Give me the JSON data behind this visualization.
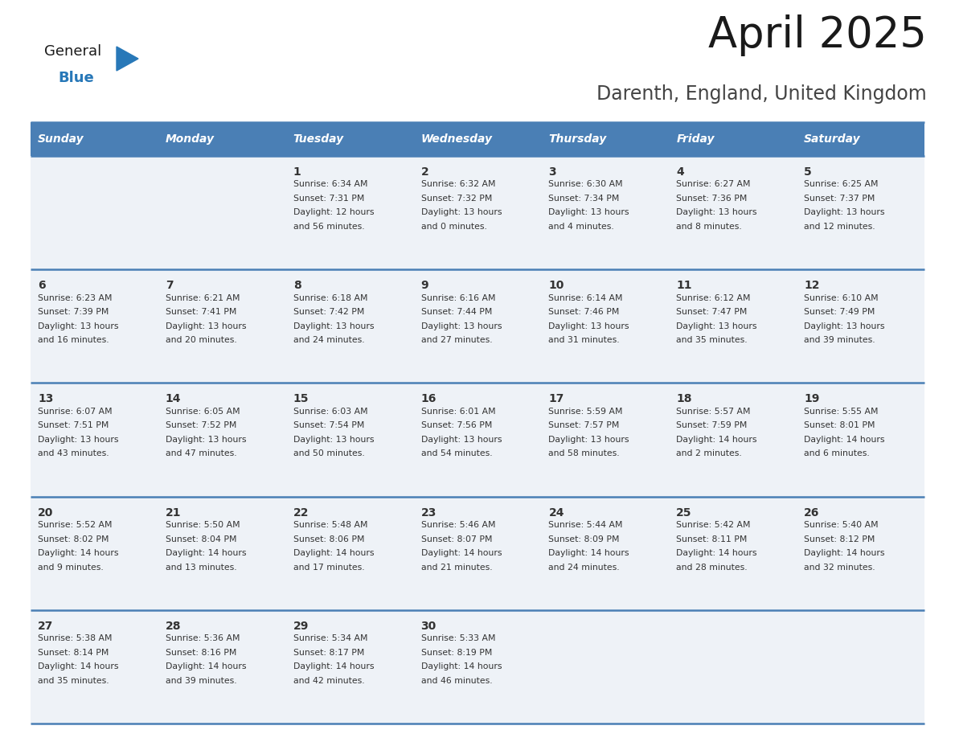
{
  "title": "April 2025",
  "subtitle": "Darenth, England, United Kingdom",
  "days_of_week": [
    "Sunday",
    "Monday",
    "Tuesday",
    "Wednesday",
    "Thursday",
    "Friday",
    "Saturday"
  ],
  "header_bg": "#4a7fb5",
  "header_text_color": "#ffffff",
  "cell_bg_light": "#eef2f7",
  "divider_color": "#4a7fb5",
  "text_color": "#333333",
  "title_color": "#1a1a1a",
  "subtitle_color": "#444444",
  "general_black": "#1a1a1a",
  "general_blue": "#2878b8",
  "weeks": [
    [
      {
        "day": null,
        "sunrise": null,
        "sunset": null,
        "daylight": null
      },
      {
        "day": null,
        "sunrise": null,
        "sunset": null,
        "daylight": null
      },
      {
        "day": 1,
        "sunrise": "6:34 AM",
        "sunset": "7:31 PM",
        "daylight": "12 hours and 56 minutes."
      },
      {
        "day": 2,
        "sunrise": "6:32 AM",
        "sunset": "7:32 PM",
        "daylight": "13 hours and 0 minutes."
      },
      {
        "day": 3,
        "sunrise": "6:30 AM",
        "sunset": "7:34 PM",
        "daylight": "13 hours and 4 minutes."
      },
      {
        "day": 4,
        "sunrise": "6:27 AM",
        "sunset": "7:36 PM",
        "daylight": "13 hours and 8 minutes."
      },
      {
        "day": 5,
        "sunrise": "6:25 AM",
        "sunset": "7:37 PM",
        "daylight": "13 hours and 12 minutes."
      }
    ],
    [
      {
        "day": 6,
        "sunrise": "6:23 AM",
        "sunset": "7:39 PM",
        "daylight": "13 hours and 16 minutes."
      },
      {
        "day": 7,
        "sunrise": "6:21 AM",
        "sunset": "7:41 PM",
        "daylight": "13 hours and 20 minutes."
      },
      {
        "day": 8,
        "sunrise": "6:18 AM",
        "sunset": "7:42 PM",
        "daylight": "13 hours and 24 minutes."
      },
      {
        "day": 9,
        "sunrise": "6:16 AM",
        "sunset": "7:44 PM",
        "daylight": "13 hours and 27 minutes."
      },
      {
        "day": 10,
        "sunrise": "6:14 AM",
        "sunset": "7:46 PM",
        "daylight": "13 hours and 31 minutes."
      },
      {
        "day": 11,
        "sunrise": "6:12 AM",
        "sunset": "7:47 PM",
        "daylight": "13 hours and 35 minutes."
      },
      {
        "day": 12,
        "sunrise": "6:10 AM",
        "sunset": "7:49 PM",
        "daylight": "13 hours and 39 minutes."
      }
    ],
    [
      {
        "day": 13,
        "sunrise": "6:07 AM",
        "sunset": "7:51 PM",
        "daylight": "13 hours and 43 minutes."
      },
      {
        "day": 14,
        "sunrise": "6:05 AM",
        "sunset": "7:52 PM",
        "daylight": "13 hours and 47 minutes."
      },
      {
        "day": 15,
        "sunrise": "6:03 AM",
        "sunset": "7:54 PM",
        "daylight": "13 hours and 50 minutes."
      },
      {
        "day": 16,
        "sunrise": "6:01 AM",
        "sunset": "7:56 PM",
        "daylight": "13 hours and 54 minutes."
      },
      {
        "day": 17,
        "sunrise": "5:59 AM",
        "sunset": "7:57 PM",
        "daylight": "13 hours and 58 minutes."
      },
      {
        "day": 18,
        "sunrise": "5:57 AM",
        "sunset": "7:59 PM",
        "daylight": "14 hours and 2 minutes."
      },
      {
        "day": 19,
        "sunrise": "5:55 AM",
        "sunset": "8:01 PM",
        "daylight": "14 hours and 6 minutes."
      }
    ],
    [
      {
        "day": 20,
        "sunrise": "5:52 AM",
        "sunset": "8:02 PM",
        "daylight": "14 hours and 9 minutes."
      },
      {
        "day": 21,
        "sunrise": "5:50 AM",
        "sunset": "8:04 PM",
        "daylight": "14 hours and 13 minutes."
      },
      {
        "day": 22,
        "sunrise": "5:48 AM",
        "sunset": "8:06 PM",
        "daylight": "14 hours and 17 minutes."
      },
      {
        "day": 23,
        "sunrise": "5:46 AM",
        "sunset": "8:07 PM",
        "daylight": "14 hours and 21 minutes."
      },
      {
        "day": 24,
        "sunrise": "5:44 AM",
        "sunset": "8:09 PM",
        "daylight": "14 hours and 24 minutes."
      },
      {
        "day": 25,
        "sunrise": "5:42 AM",
        "sunset": "8:11 PM",
        "daylight": "14 hours and 28 minutes."
      },
      {
        "day": 26,
        "sunrise": "5:40 AM",
        "sunset": "8:12 PM",
        "daylight": "14 hours and 32 minutes."
      }
    ],
    [
      {
        "day": 27,
        "sunrise": "5:38 AM",
        "sunset": "8:14 PM",
        "daylight": "14 hours and 35 minutes."
      },
      {
        "day": 28,
        "sunrise": "5:36 AM",
        "sunset": "8:16 PM",
        "daylight": "14 hours and 39 minutes."
      },
      {
        "day": 29,
        "sunrise": "5:34 AM",
        "sunset": "8:17 PM",
        "daylight": "14 hours and 42 minutes."
      },
      {
        "day": 30,
        "sunrise": "5:33 AM",
        "sunset": "8:19 PM",
        "daylight": "14 hours and 46 minutes."
      },
      {
        "day": null,
        "sunrise": null,
        "sunset": null,
        "daylight": null
      },
      {
        "day": null,
        "sunrise": null,
        "sunset": null,
        "daylight": null
      },
      {
        "day": null,
        "sunrise": null,
        "sunset": null,
        "daylight": null
      }
    ]
  ]
}
